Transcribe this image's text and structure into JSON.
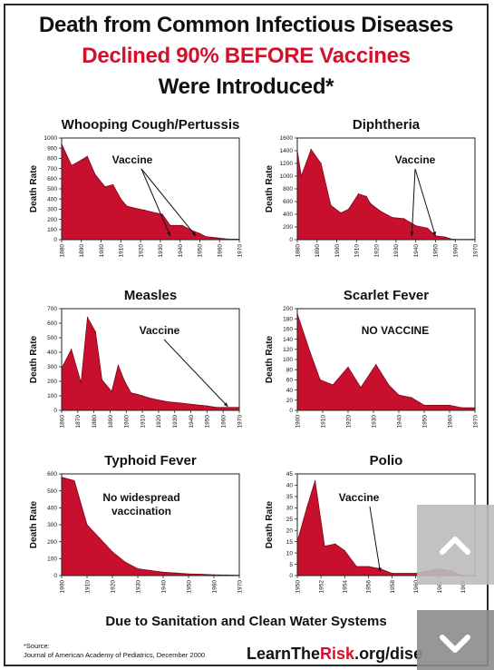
{
  "header": {
    "line1": "Death from Common Infectious Diseases",
    "line2": "Declined 90% BEFORE Vaccines",
    "line3": "Were Introduced*"
  },
  "footer": {
    "tagline": "Due to Sanitation and Clean Water Systems",
    "source_label": "*Source:",
    "source_text": "Journal of American Academy of Pediatrics, December 2000",
    "url_pre": "LearnThe",
    "url_accent": "Risk",
    "url_post": ".org/dise"
  },
  "colors": {
    "fill": "#c8102e",
    "accent_text": "#d4102a",
    "axis": "#222222"
  },
  "nav": {
    "up_icon": "chevron-up-icon",
    "down_icon": "chevron-down-icon"
  },
  "chart_data": [
    {
      "type": "area",
      "title": "Whooping Cough/Pertussis",
      "ylabel": "Death Rate",
      "xlim": [
        1880,
        1970
      ],
      "ylim": [
        0,
        1000
      ],
      "yticks": [
        0,
        100,
        200,
        300,
        400,
        500,
        600,
        700,
        800,
        900,
        1000
      ],
      "xticks": [
        1880,
        1890,
        1900,
        1910,
        1920,
        1930,
        1940,
        1950,
        1960,
        1970
      ],
      "x": [
        1880,
        1885,
        1888,
        1893,
        1897,
        1902,
        1906,
        1910,
        1913,
        1917,
        1922,
        1926,
        1931,
        1935,
        1941,
        1946,
        1950,
        1953,
        1958,
        1962,
        1965,
        1970
      ],
      "y": [
        940,
        730,
        760,
        820,
        640,
        520,
        540,
        400,
        330,
        310,
        290,
        270,
        250,
        140,
        140,
        90,
        60,
        30,
        20,
        10,
        5,
        5
      ],
      "annotation": "Vaccine",
      "arrow_targets": [
        1935,
        1948
      ]
    },
    {
      "type": "area",
      "title": "Diphtheria",
      "ylabel": "Death Rate",
      "xlim": [
        1880,
        1970
      ],
      "ylim": [
        0,
        1600
      ],
      "yticks": [
        0,
        200,
        400,
        600,
        800,
        1000,
        1200,
        1400,
        1600
      ],
      "xticks": [
        1880,
        1890,
        1900,
        1910,
        1920,
        1930,
        1940,
        1950,
        1960,
        1970
      ],
      "x": [
        1880,
        1882,
        1887,
        1892,
        1897,
        1902,
        1906,
        1911,
        1915,
        1917,
        1922,
        1928,
        1934,
        1940,
        1946,
        1950,
        1955,
        1958,
        1960,
        1970
      ],
      "y": [
        1400,
        1000,
        1420,
        1200,
        540,
        420,
        480,
        720,
        680,
        570,
        450,
        350,
        330,
        220,
        180,
        60,
        40,
        10,
        5,
        5
      ],
      "annotation": "Vaccine",
      "arrow_targets": [
        1938,
        1950
      ]
    },
    {
      "type": "area",
      "title": "Measles",
      "ylabel": "Death Rate",
      "xlim": [
        1860,
        1970
      ],
      "ylim": [
        0,
        700
      ],
      "yticks": [
        0,
        100,
        200,
        300,
        400,
        500,
        600,
        700
      ],
      "xticks": [
        1860,
        1870,
        1880,
        1890,
        1900,
        1910,
        1920,
        1930,
        1940,
        1950,
        1960,
        1970
      ],
      "x": [
        1860,
        1866,
        1872,
        1876,
        1881,
        1885,
        1891,
        1895,
        1899,
        1903,
        1907,
        1910,
        1916,
        1925,
        1934,
        1942,
        1950,
        1956,
        1970
      ],
      "y": [
        290,
        420,
        190,
        640,
        540,
        210,
        130,
        310,
        200,
        120,
        110,
        100,
        80,
        60,
        50,
        40,
        30,
        20,
        20
      ],
      "annotation": "Vaccine",
      "arrow_targets": [
        1963
      ]
    },
    {
      "type": "area",
      "title": "Scarlet Fever",
      "ylabel": "Death Rate",
      "xlim": [
        1900,
        1970
      ],
      "ylim": [
        0,
        200
      ],
      "yticks": [
        0,
        20,
        40,
        60,
        80,
        100,
        120,
        140,
        160,
        180,
        200
      ],
      "xticks": [
        1900,
        1910,
        1920,
        1930,
        1940,
        1950,
        1960,
        1970
      ],
      "x": [
        1900,
        1905,
        1909,
        1914,
        1920,
        1925,
        1931,
        1936,
        1940,
        1945,
        1950,
        1955,
        1960,
        1965,
        1970
      ],
      "y": [
        190,
        115,
        60,
        50,
        85,
        45,
        90,
        50,
        30,
        25,
        10,
        10,
        10,
        5,
        5
      ],
      "annotation": "NO VACCINE"
    },
    {
      "type": "area",
      "title": "Typhoid Fever",
      "ylabel": "Death Rate",
      "xlim": [
        1900,
        1970
      ],
      "ylim": [
        0,
        600
      ],
      "yticks": [
        0,
        100,
        200,
        300,
        400,
        500,
        600
      ],
      "xticks": [
        1900,
        1910,
        1920,
        1930,
        1940,
        1950,
        1960,
        1970
      ],
      "x": [
        1900,
        1905,
        1910,
        1915,
        1920,
        1925,
        1930,
        1935,
        1940,
        1945,
        1950,
        1955,
        1960,
        1965,
        1970
      ],
      "y": [
        580,
        560,
        300,
        220,
        140,
        80,
        40,
        30,
        20,
        15,
        10,
        8,
        5,
        3,
        2
      ],
      "annotation_lines": [
        "No widespread",
        "vaccination"
      ]
    },
    {
      "type": "area",
      "title": "Polio",
      "ylabel": "Death Rate",
      "xlim": [
        1950,
        1965
      ],
      "ylim": [
        0,
        45
      ],
      "yticks": [
        0,
        5,
        10,
        15,
        20,
        25,
        30,
        35,
        40,
        45
      ],
      "xticks": [
        1950,
        1952,
        1954,
        1956,
        1958,
        1960,
        1962,
        1964
      ],
      "x": [
        1950,
        1950.8,
        1951.5,
        1952.3,
        1953.2,
        1954,
        1955,
        1956,
        1957,
        1958,
        1959,
        1960,
        1961,
        1962,
        1963,
        1964,
        1965
      ],
      "y": [
        15,
        30,
        42,
        13,
        14,
        11,
        4,
        4,
        3,
        1,
        1,
        1,
        2,
        3,
        2,
        0,
        0
      ],
      "annotation": "Vaccine",
      "arrow_targets": [
        1957
      ]
    }
  ]
}
